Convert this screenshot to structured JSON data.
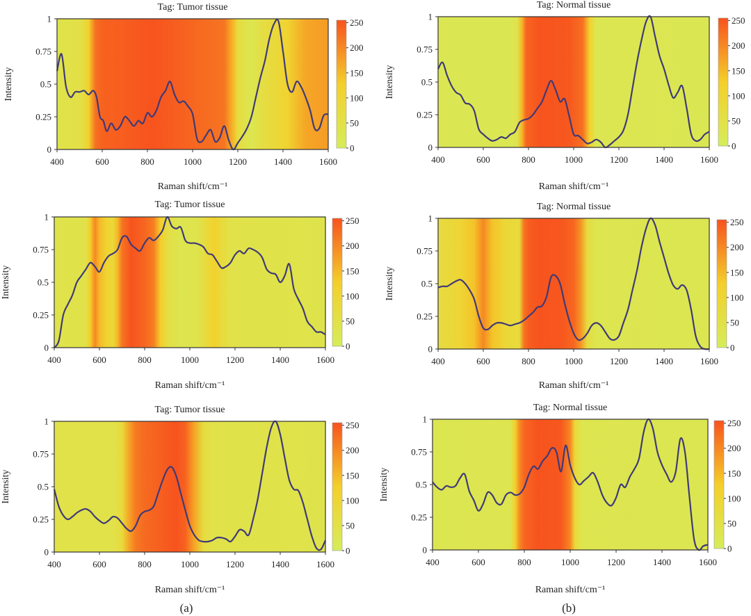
{
  "figure": {
    "captions": [
      "(a)",
      "(b)"
    ],
    "heat_colors": {
      "low": "#d6ec5a",
      "mid": "#f4cf2a",
      "high": "#f7531e",
      "line": "#3f3a78"
    }
  },
  "chart_data": [
    {
      "id": "a1",
      "type": "line",
      "title": "Tag: Tumor tissue",
      "xlabel": "Raman shift/cm⁻¹",
      "ylabel": "Intensity",
      "xlim": [
        400,
        1600
      ],
      "ylim": [
        0,
        1
      ],
      "xticks": [
        "400",
        "600",
        "800",
        "1000",
        "1200",
        "1400",
        "1600"
      ],
      "yticks": [
        "0",
        "0.25",
        "0.5",
        "0.75",
        "1"
      ],
      "colorbar": {
        "ticks": [
          "0",
          "50",
          "100",
          "150",
          "200",
          "250"
        ],
        "range": [
          0,
          255
        ]
      },
      "heatmap": [
        [
          400,
          40
        ],
        [
          510,
          55
        ],
        [
          540,
          120
        ],
        [
          570,
          225
        ],
        [
          600,
          240
        ],
        [
          700,
          245
        ],
        [
          820,
          255
        ],
        [
          1000,
          235
        ],
        [
          1140,
          220
        ],
        [
          1180,
          150
        ],
        [
          1200,
          70
        ],
        [
          1260,
          25
        ],
        [
          1300,
          55
        ],
        [
          1420,
          110
        ],
        [
          1500,
          170
        ],
        [
          1600,
          180
        ]
      ],
      "x": [
        400,
        420,
        440,
        460,
        480,
        500,
        520,
        540,
        560,
        575,
        590,
        605,
        620,
        640,
        660,
        680,
        700,
        720,
        740,
        760,
        780,
        800,
        820,
        840,
        860,
        880,
        900,
        920,
        940,
        960,
        980,
        1000,
        1020,
        1040,
        1060,
        1080,
        1100,
        1120,
        1140,
        1160,
        1180,
        1200,
        1220,
        1240,
        1260,
        1280,
        1300,
        1320,
        1340,
        1360,
        1380,
        1400,
        1420,
        1440,
        1460,
        1480,
        1500,
        1520,
        1540,
        1560,
        1580,
        1600
      ],
      "y": [
        0.6,
        0.73,
        0.48,
        0.4,
        0.44,
        0.44,
        0.45,
        0.42,
        0.45,
        0.4,
        0.25,
        0.22,
        0.14,
        0.2,
        0.15,
        0.18,
        0.25,
        0.22,
        0.18,
        0.22,
        0.2,
        0.28,
        0.25,
        0.3,
        0.4,
        0.45,
        0.52,
        0.42,
        0.36,
        0.37,
        0.33,
        0.27,
        0.08,
        0.06,
        0.11,
        0.15,
        0.06,
        0.09,
        0.18,
        0.07,
        0.0,
        0.05,
        0.1,
        0.16,
        0.25,
        0.4,
        0.55,
        0.68,
        0.85,
        0.96,
        0.98,
        0.75,
        0.5,
        0.44,
        0.52,
        0.48,
        0.4,
        0.3,
        0.16,
        0.16,
        0.26,
        0.27
      ]
    },
    {
      "id": "b1",
      "type": "line",
      "title": "Tag: Normal tissue",
      "xlabel": "Raman shift/cm⁻¹",
      "ylabel": "Intensity",
      "xlim": [
        400,
        1600
      ],
      "ylim": [
        0,
        1
      ],
      "xticks": [
        "400",
        "600",
        "800",
        "1000",
        "1200",
        "1400",
        "1600"
      ],
      "yticks": [
        "0",
        "0.25",
        "0.5",
        "0.75",
        "1"
      ],
      "colorbar": {
        "ticks": [
          "0",
          "50",
          "100",
          "150",
          "200",
          "250"
        ],
        "range": [
          0,
          255
        ]
      },
      "heatmap": [
        [
          400,
          22
        ],
        [
          700,
          22
        ],
        [
          750,
          35
        ],
        [
          770,
          150
        ],
        [
          790,
          235
        ],
        [
          850,
          255
        ],
        [
          980,
          250
        ],
        [
          1040,
          225
        ],
        [
          1070,
          120
        ],
        [
          1100,
          25
        ],
        [
          1600,
          22
        ]
      ],
      "x": [
        400,
        420,
        440,
        460,
        480,
        500,
        520,
        540,
        560,
        580,
        600,
        620,
        640,
        660,
        680,
        700,
        720,
        740,
        760,
        780,
        800,
        820,
        840,
        860,
        880,
        900,
        920,
        940,
        960,
        980,
        1000,
        1020,
        1040,
        1060,
        1080,
        1100,
        1120,
        1140,
        1160,
        1180,
        1200,
        1220,
        1240,
        1260,
        1280,
        1300,
        1320,
        1340,
        1360,
        1380,
        1400,
        1420,
        1440,
        1460,
        1480,
        1500,
        1520,
        1540,
        1560,
        1580,
        1600
      ],
      "y": [
        0.6,
        0.65,
        0.55,
        0.47,
        0.42,
        0.4,
        0.34,
        0.33,
        0.28,
        0.14,
        0.1,
        0.07,
        0.05,
        0.06,
        0.08,
        0.07,
        0.1,
        0.12,
        0.19,
        0.21,
        0.22,
        0.25,
        0.3,
        0.35,
        0.44,
        0.51,
        0.44,
        0.35,
        0.37,
        0.24,
        0.1,
        0.09,
        0.06,
        0.03,
        0.04,
        0.06,
        0.04,
        0.0,
        0.02,
        0.05,
        0.08,
        0.13,
        0.25,
        0.45,
        0.65,
        0.82,
        0.96,
        1.0,
        0.85,
        0.7,
        0.6,
        0.48,
        0.38,
        0.42,
        0.47,
        0.3,
        0.1,
        0.05,
        0.06,
        0.1,
        0.12
      ]
    },
    {
      "id": "a2",
      "type": "line",
      "title": "Tag: Tumor tissue",
      "xlabel": "Raman shift/cm⁻¹",
      "ylabel": "Intensity",
      "xlim": [
        400,
        1600
      ],
      "ylim": [
        0,
        1
      ],
      "xticks": [
        "400",
        "600",
        "800",
        "1000",
        "1200",
        "1400",
        "1600"
      ],
      "yticks": [
        "0",
        "0.25",
        "0.5",
        "0.75",
        "1"
      ],
      "colorbar": {
        "ticks": [
          "0",
          "50",
          "100",
          "150",
          "200",
          "250"
        ],
        "range": [
          0,
          255
        ]
      },
      "heatmap": [
        [
          400,
          40
        ],
        [
          540,
          45
        ],
        [
          560,
          130
        ],
        [
          580,
          200
        ],
        [
          600,
          150
        ],
        [
          630,
          110
        ],
        [
          660,
          90
        ],
        [
          680,
          150
        ],
        [
          700,
          220
        ],
        [
          740,
          255
        ],
        [
          800,
          235
        ],
        [
          840,
          210
        ],
        [
          870,
          130
        ],
        [
          900,
          60
        ],
        [
          960,
          30
        ],
        [
          1040,
          40
        ],
        [
          1080,
          90
        ],
        [
          1110,
          120
        ],
        [
          1140,
          80
        ],
        [
          1180,
          45
        ],
        [
          1600,
          40
        ]
      ],
      "x": [
        400,
        420,
        440,
        460,
        480,
        500,
        520,
        540,
        560,
        580,
        600,
        620,
        640,
        660,
        680,
        700,
        720,
        740,
        760,
        780,
        800,
        820,
        840,
        860,
        880,
        900,
        920,
        940,
        960,
        980,
        1000,
        1020,
        1040,
        1060,
        1080,
        1100,
        1120,
        1140,
        1160,
        1180,
        1200,
        1220,
        1240,
        1260,
        1280,
        1300,
        1320,
        1340,
        1360,
        1380,
        1400,
        1420,
        1440,
        1460,
        1480,
        1500,
        1520,
        1540,
        1560,
        1580,
        1600
      ],
      "y": [
        0.0,
        0.05,
        0.25,
        0.33,
        0.4,
        0.5,
        0.55,
        0.6,
        0.65,
        0.62,
        0.58,
        0.65,
        0.7,
        0.72,
        0.75,
        0.84,
        0.85,
        0.79,
        0.76,
        0.74,
        0.8,
        0.84,
        0.82,
        0.85,
        0.9,
        1.0,
        0.93,
        0.91,
        0.92,
        0.82,
        0.8,
        0.8,
        0.79,
        0.77,
        0.72,
        0.71,
        0.66,
        0.61,
        0.62,
        0.65,
        0.71,
        0.74,
        0.72,
        0.76,
        0.75,
        0.73,
        0.69,
        0.6,
        0.57,
        0.56,
        0.5,
        0.55,
        0.64,
        0.45,
        0.37,
        0.3,
        0.2,
        0.16,
        0.12,
        0.12,
        0.1
      ]
    },
    {
      "id": "b2",
      "type": "line",
      "title": "Tag: Normal tissue",
      "xlabel": "Raman shift/cm⁻¹",
      "ylabel": "Intensity",
      "xlim": [
        400,
        1600
      ],
      "ylim": [
        0,
        1
      ],
      "xticks": [
        "400",
        "600",
        "800",
        "1000",
        "1200",
        "1400",
        "1600"
      ],
      "yticks": [
        "0",
        "0.25",
        "0.5",
        "0.75",
        "1"
      ],
      "colorbar": {
        "ticks": [
          "0",
          "50",
          "100",
          "150",
          "200",
          "250"
        ],
        "range": [
          0,
          255
        ]
      },
      "heatmap": [
        [
          400,
          70
        ],
        [
          500,
          100
        ],
        [
          560,
          140
        ],
        [
          600,
          200
        ],
        [
          640,
          140
        ],
        [
          700,
          90
        ],
        [
          760,
          80
        ],
        [
          780,
          220
        ],
        [
          800,
          245
        ],
        [
          850,
          255
        ],
        [
          950,
          250
        ],
        [
          1000,
          235
        ],
        [
          1030,
          190
        ],
        [
          1060,
          70
        ],
        [
          1100,
          30
        ],
        [
          1600,
          25
        ]
      ],
      "x": [
        400,
        420,
        440,
        460,
        480,
        500,
        520,
        540,
        560,
        580,
        600,
        620,
        640,
        660,
        680,
        700,
        720,
        740,
        760,
        780,
        800,
        820,
        840,
        860,
        880,
        900,
        920,
        940,
        960,
        980,
        1000,
        1020,
        1040,
        1060,
        1080,
        1100,
        1120,
        1140,
        1160,
        1180,
        1200,
        1220,
        1240,
        1260,
        1280,
        1300,
        1320,
        1340,
        1360,
        1380,
        1400,
        1420,
        1440,
        1460,
        1480,
        1500,
        1520,
        1540,
        1560,
        1580,
        1600
      ],
      "y": [
        0.47,
        0.48,
        0.48,
        0.5,
        0.52,
        0.53,
        0.5,
        0.45,
        0.38,
        0.25,
        0.16,
        0.15,
        0.18,
        0.2,
        0.2,
        0.19,
        0.18,
        0.19,
        0.2,
        0.22,
        0.25,
        0.28,
        0.32,
        0.33,
        0.4,
        0.55,
        0.56,
        0.5,
        0.35,
        0.22,
        0.12,
        0.07,
        0.08,
        0.12,
        0.18,
        0.2,
        0.18,
        0.13,
        0.08,
        0.07,
        0.1,
        0.2,
        0.3,
        0.45,
        0.6,
        0.78,
        0.92,
        1.0,
        0.95,
        0.82,
        0.7,
        0.58,
        0.49,
        0.46,
        0.49,
        0.45,
        0.3,
        0.1,
        0.02,
        0.0,
        0.0
      ]
    },
    {
      "id": "a3",
      "type": "line",
      "title": "Tag: Tumor tissue",
      "xlabel": "Raman shift/cm⁻¹",
      "ylabel": "Intensity",
      "xlim": [
        400,
        1600
      ],
      "ylim": [
        0,
        1
      ],
      "xticks": [
        "400",
        "600",
        "800",
        "1000",
        "1200",
        "1400",
        "1600"
      ],
      "yticks": [
        "0",
        "0.25",
        "0.5",
        "0.75",
        "1"
      ],
      "colorbar": {
        "ticks": [
          "0",
          "50",
          "100",
          "150",
          "200",
          "250"
        ],
        "range": [
          0,
          255
        ]
      },
      "heatmap": [
        [
          400,
          45
        ],
        [
          660,
          45
        ],
        [
          700,
          80
        ],
        [
          730,
          170
        ],
        [
          760,
          215
        ],
        [
          800,
          230
        ],
        [
          880,
          245
        ],
        [
          940,
          255
        ],
        [
          980,
          240
        ],
        [
          1020,
          170
        ],
        [
          1060,
          70
        ],
        [
          1100,
          45
        ],
        [
          1600,
          40
        ]
      ],
      "x": [
        400,
        420,
        440,
        460,
        480,
        500,
        520,
        540,
        560,
        580,
        600,
        620,
        640,
        660,
        680,
        700,
        720,
        740,
        760,
        780,
        800,
        820,
        840,
        860,
        880,
        900,
        920,
        940,
        960,
        980,
        1000,
        1020,
        1040,
        1060,
        1080,
        1100,
        1120,
        1140,
        1160,
        1180,
        1200,
        1220,
        1240,
        1260,
        1280,
        1300,
        1320,
        1340,
        1360,
        1380,
        1400,
        1420,
        1440,
        1460,
        1480,
        1500,
        1520,
        1540,
        1560,
        1580,
        1600
      ],
      "y": [
        0.48,
        0.35,
        0.28,
        0.25,
        0.27,
        0.3,
        0.32,
        0.33,
        0.31,
        0.27,
        0.24,
        0.22,
        0.24,
        0.27,
        0.26,
        0.22,
        0.18,
        0.16,
        0.2,
        0.28,
        0.31,
        0.32,
        0.35,
        0.45,
        0.55,
        0.63,
        0.65,
        0.58,
        0.45,
        0.32,
        0.2,
        0.13,
        0.09,
        0.08,
        0.08,
        0.09,
        0.11,
        0.11,
        0.1,
        0.08,
        0.12,
        0.17,
        0.16,
        0.13,
        0.25,
        0.4,
        0.6,
        0.8,
        0.95,
        1.0,
        0.9,
        0.72,
        0.55,
        0.48,
        0.47,
        0.38,
        0.25,
        0.12,
        0.03,
        0.02,
        0.09
      ]
    },
    {
      "id": "b3",
      "type": "line",
      "title": "Tag: Normal tissue",
      "xlabel": "Raman shift/cm⁻¹",
      "ylabel": "Intensity",
      "xlim": [
        400,
        1600
      ],
      "ylim": [
        0,
        1
      ],
      "xticks": [
        "400",
        "600",
        "800",
        "1000",
        "1200",
        "1400",
        "1600"
      ],
      "yticks": [
        "0",
        "0.25",
        "0.5",
        "0.75",
        "1"
      ],
      "colorbar": {
        "ticks": [
          "0",
          "50",
          "100",
          "150",
          "200",
          "250"
        ],
        "range": [
          0,
          255
        ]
      },
      "heatmap": [
        [
          400,
          25
        ],
        [
          740,
          30
        ],
        [
          760,
          120
        ],
        [
          780,
          200
        ],
        [
          800,
          235
        ],
        [
          860,
          255
        ],
        [
          960,
          250
        ],
        [
          1000,
          200
        ],
        [
          1020,
          90
        ],
        [
          1050,
          30
        ],
        [
          1600,
          25
        ]
      ],
      "x": [
        400,
        420,
        440,
        460,
        480,
        500,
        520,
        540,
        560,
        580,
        600,
        620,
        640,
        660,
        680,
        700,
        720,
        740,
        760,
        780,
        800,
        820,
        840,
        860,
        880,
        900,
        920,
        940,
        960,
        980,
        1000,
        1020,
        1040,
        1060,
        1080,
        1100,
        1120,
        1140,
        1160,
        1180,
        1200,
        1220,
        1240,
        1260,
        1280,
        1300,
        1320,
        1340,
        1360,
        1380,
        1400,
        1420,
        1440,
        1460,
        1480,
        1500,
        1520,
        1540,
        1560,
        1580,
        1600
      ],
      "y": [
        0.52,
        0.48,
        0.46,
        0.49,
        0.48,
        0.49,
        0.55,
        0.58,
        0.45,
        0.38,
        0.3,
        0.35,
        0.44,
        0.42,
        0.36,
        0.35,
        0.42,
        0.44,
        0.42,
        0.43,
        0.48,
        0.58,
        0.64,
        0.62,
        0.68,
        0.72,
        0.78,
        0.75,
        0.6,
        0.8,
        0.65,
        0.55,
        0.5,
        0.53,
        0.56,
        0.59,
        0.52,
        0.42,
        0.36,
        0.34,
        0.4,
        0.5,
        0.48,
        0.56,
        0.62,
        0.7,
        0.9,
        1.0,
        0.93,
        0.75,
        0.65,
        0.58,
        0.52,
        0.6,
        0.85,
        0.75,
        0.4,
        0.08,
        0.0,
        0.03,
        0.04
      ]
    }
  ]
}
